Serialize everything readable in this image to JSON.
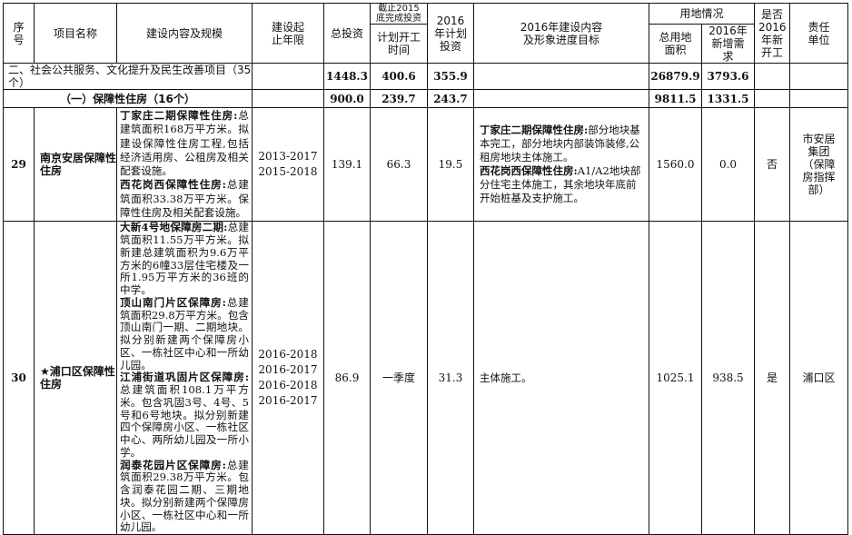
{
  "header": {
    "seq": "序号",
    "name": "项目名称",
    "content": "建设内容及规模",
    "period": "建设起止年限",
    "total": "总投资",
    "completed_top": "截止2015底完成投资",
    "completed_bottom": "计划开工时间",
    "plan2016": "2016年计划投资",
    "goal2016": "2016年建设内容及形象进度目标",
    "land": "用地情况",
    "land_total": "总用地面积",
    "land_new": "2016年新增需求",
    "new_start": "是否2016年新开工",
    "unit": "责任单位"
  },
  "section": {
    "label": "二、社会公共服务、文化提升及民生改善项目（35个）",
    "total": "1448.3",
    "completed": "400.6",
    "plan2016": "355.9",
    "land_total": "26879.9",
    "land_new": "3793.6"
  },
  "subsection": {
    "label": "（一）保障性住房（16个）",
    "total": "900.0",
    "completed": "239.7",
    "plan2016": "243.7",
    "land_total": "9811.5",
    "land_new": "1331.5"
  },
  "rows": [
    {
      "seq": "29",
      "name": "南京安居保障性住房",
      "content": [
        {
          "title": "丁家庄二期保障性住房:",
          "text": "总建筑面积168万平方米。拟建设保障性住房工程,包括经济适用房、公租房及相关配套设施。"
        },
        {
          "title": "西花岗西保障性住房:",
          "text": "总建筑面积33.38万平方米。保障性住房及相关配套设施。"
        }
      ],
      "periods": [
        "2013-2017",
        "2015-2018"
      ],
      "total": "139.1",
      "completed": "66.3",
      "plan2016": "19.5",
      "goal": [
        {
          "title": "丁家庄二期保障性住房:",
          "text": "部分地块基本完工，部分地块内部装饰装修,公租房地块主体施工。"
        },
        {
          "title": "西花岗西保障性住房:",
          "text": "A1/A2地块部分住宅主体施工，其余地块年底前开始桩基及支护施工。"
        }
      ],
      "land_total": "1560.0",
      "land_new": "0.0",
      "new_start": "否",
      "unit": "市安居集团（保障房指挥部）"
    },
    {
      "seq": "30",
      "name": "★浦口区保障性住房",
      "content": [
        {
          "title": "大新4号地保障房二期:",
          "text": "总建筑面积11.55万平方米。拟新建总建筑面积为9.6万平方米的6幢33层住宅楼及一所1.95万平方米的36班的中学。"
        },
        {
          "title": "顶山南门片区保障房:",
          "text": "总建筑面积29.8万平方米。包含顶山南门一期、二期地块。拟分别新建两个保障房小区、一栋社区中心和一所幼儿园。"
        },
        {
          "title": "江浦街道巩固片区保障房:",
          "text": "总建筑面积108.1万平方米。包含巩固3号、4号、5号和6号地块。拟分别新建四个保障房小区、一栋社区中心、两所幼儿园及一所小学。"
        },
        {
          "title": "润泰花园片区保障房:",
          "text": "总建筑面积29.38万平方米。包含润泰花园二期、三期地块。拟分别新建两个保障房小区、一栋社区中心和一所幼儿园。"
        }
      ],
      "periods": [
        "2016-2018",
        "2016-2017",
        "2016-2018",
        "2016-2017"
      ],
      "total": "86.9",
      "completed": "一季度",
      "plan2016": "31.3",
      "goal": [
        {
          "title": "",
          "text": "主体施工。"
        }
      ],
      "land_total": "1025.1",
      "land_new": "938.5",
      "new_start": "是",
      "unit": "浦口区"
    }
  ]
}
